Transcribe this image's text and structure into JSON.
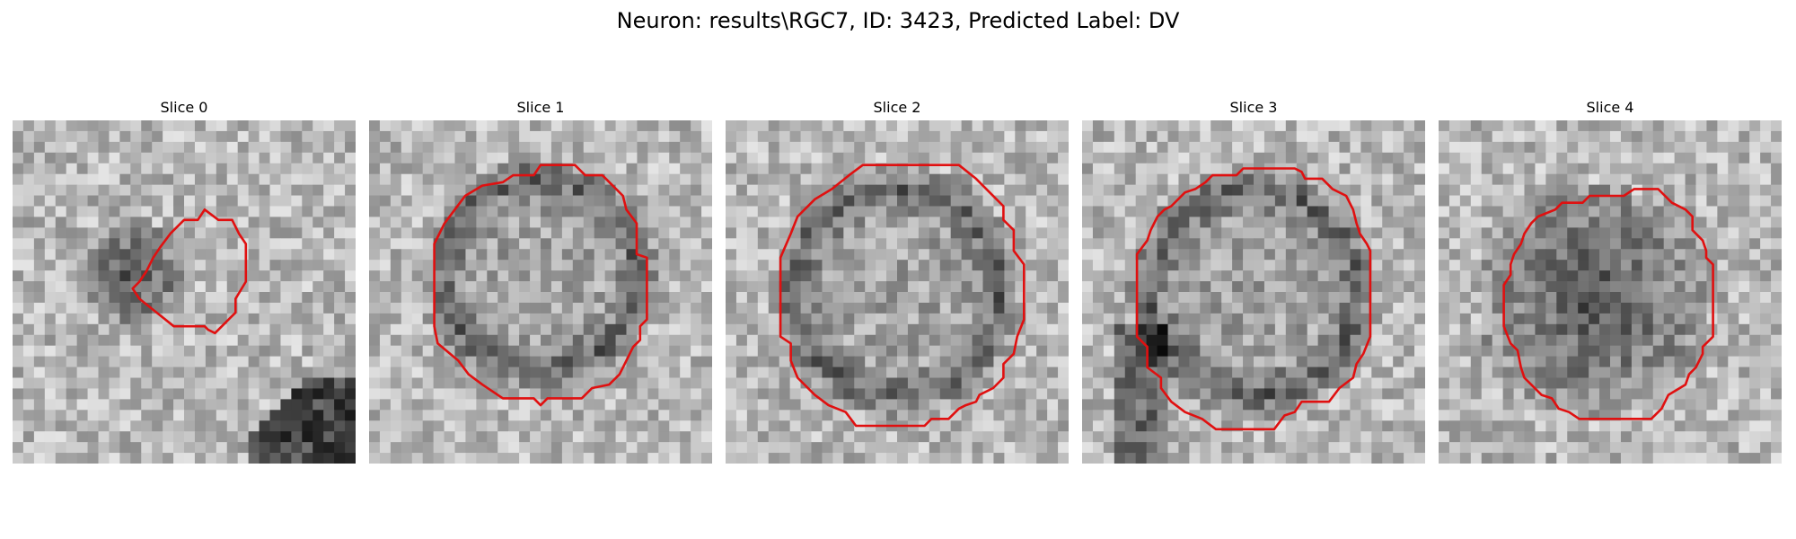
{
  "figure": {
    "title": "Neuron: results\\RGC7, ID: 3423, Predicted Label: DV"
  },
  "panels": [
    {
      "title": "Slice 0",
      "dark_center": [
        0.35,
        0.45
      ],
      "dark_radius": 0.16,
      "ring": false,
      "contour": [
        [
          0.56,
          0.26
        ],
        [
          0.6,
          0.29
        ],
        [
          0.64,
          0.29
        ],
        [
          0.66,
          0.33
        ],
        [
          0.68,
          0.36
        ],
        [
          0.68,
          0.47
        ],
        [
          0.65,
          0.52
        ],
        [
          0.65,
          0.56
        ],
        [
          0.62,
          0.59
        ],
        [
          0.59,
          0.62
        ],
        [
          0.57,
          0.61
        ],
        [
          0.56,
          0.6
        ],
        [
          0.47,
          0.6
        ],
        [
          0.42,
          0.56
        ],
        [
          0.37,
          0.52
        ],
        [
          0.35,
          0.49
        ],
        [
          0.37,
          0.47
        ],
        [
          0.39,
          0.44
        ],
        [
          0.41,
          0.4
        ],
        [
          0.43,
          0.37
        ],
        [
          0.46,
          0.33
        ],
        [
          0.5,
          0.29
        ],
        [
          0.54,
          0.29
        ]
      ],
      "contour_color": "#e01010"
    },
    {
      "title": "Slice 1",
      "dark_center": [
        0.5,
        0.45
      ],
      "dark_radius": 0.28,
      "ring": true,
      "contour": [
        [
          0.39,
          0.18
        ],
        [
          0.42,
          0.16
        ],
        [
          0.48,
          0.16
        ],
        [
          0.5,
          0.13
        ],
        [
          0.6,
          0.13
        ],
        [
          0.63,
          0.16
        ],
        [
          0.68,
          0.16
        ],
        [
          0.74,
          0.22
        ],
        [
          0.75,
          0.26
        ],
        [
          0.78,
          0.3
        ],
        [
          0.78,
          0.39
        ],
        [
          0.81,
          0.4
        ],
        [
          0.81,
          0.58
        ],
        [
          0.79,
          0.6
        ],
        [
          0.79,
          0.64
        ],
        [
          0.77,
          0.66
        ],
        [
          0.75,
          0.7
        ],
        [
          0.73,
          0.74
        ],
        [
          0.7,
          0.77
        ],
        [
          0.65,
          0.78
        ],
        [
          0.62,
          0.81
        ],
        [
          0.52,
          0.81
        ],
        [
          0.5,
          0.83
        ],
        [
          0.48,
          0.81
        ],
        [
          0.39,
          0.81
        ],
        [
          0.33,
          0.77
        ],
        [
          0.29,
          0.74
        ],
        [
          0.26,
          0.7
        ],
        [
          0.2,
          0.65
        ],
        [
          0.19,
          0.6
        ],
        [
          0.19,
          0.36
        ],
        [
          0.22,
          0.3
        ],
        [
          0.25,
          0.26
        ],
        [
          0.28,
          0.22
        ],
        [
          0.33,
          0.19
        ]
      ],
      "contour_color": "#e01010"
    },
    {
      "title": "Slice 2",
      "dark_center": [
        0.5,
        0.5
      ],
      "dark_radius": 0.3,
      "ring": true,
      "contour": [
        [
          0.31,
          0.2
        ],
        [
          0.36,
          0.16
        ],
        [
          0.4,
          0.13
        ],
        [
          0.68,
          0.13
        ],
        [
          0.73,
          0.17
        ],
        [
          0.79,
          0.23
        ],
        [
          0.81,
          0.25
        ],
        [
          0.81,
          0.29
        ],
        [
          0.84,
          0.32
        ],
        [
          0.84,
          0.38
        ],
        [
          0.87,
          0.42
        ],
        [
          0.87,
          0.58
        ],
        [
          0.85,
          0.63
        ],
        [
          0.84,
          0.68
        ],
        [
          0.81,
          0.71
        ],
        [
          0.81,
          0.75
        ],
        [
          0.78,
          0.78
        ],
        [
          0.74,
          0.8
        ],
        [
          0.73,
          0.82
        ],
        [
          0.7,
          0.83
        ],
        [
          0.68,
          0.84
        ],
        [
          0.65,
          0.87
        ],
        [
          0.6,
          0.87
        ],
        [
          0.58,
          0.89
        ],
        [
          0.38,
          0.89
        ],
        [
          0.35,
          0.85
        ],
        [
          0.3,
          0.83
        ],
        [
          0.26,
          0.8
        ],
        [
          0.21,
          0.75
        ],
        [
          0.19,
          0.7
        ],
        [
          0.19,
          0.65
        ],
        [
          0.16,
          0.63
        ],
        [
          0.16,
          0.4
        ],
        [
          0.19,
          0.33
        ],
        [
          0.21,
          0.28
        ],
        [
          0.26,
          0.23
        ]
      ],
      "contour_color": "#e01010"
    },
    {
      "title": "Slice 3",
      "dark_center": [
        0.5,
        0.5
      ],
      "dark_radius": 0.3,
      "ring": true,
      "contour": [
        [
          0.26,
          0.25
        ],
        [
          0.3,
          0.21
        ],
        [
          0.33,
          0.2
        ],
        [
          0.36,
          0.18
        ],
        [
          0.38,
          0.16
        ],
        [
          0.45,
          0.16
        ],
        [
          0.47,
          0.14
        ],
        [
          0.62,
          0.14
        ],
        [
          0.64,
          0.15
        ],
        [
          0.65,
          0.17
        ],
        [
          0.7,
          0.17
        ],
        [
          0.73,
          0.2
        ],
        [
          0.77,
          0.22
        ],
        [
          0.79,
          0.26
        ],
        [
          0.8,
          0.3
        ],
        [
          0.81,
          0.33
        ],
        [
          0.83,
          0.36
        ],
        [
          0.84,
          0.38
        ],
        [
          0.84,
          0.63
        ],
        [
          0.82,
          0.68
        ],
        [
          0.8,
          0.71
        ],
        [
          0.79,
          0.75
        ],
        [
          0.75,
          0.78
        ],
        [
          0.72,
          0.82
        ],
        [
          0.64,
          0.82
        ],
        [
          0.62,
          0.85
        ],
        [
          0.59,
          0.86
        ],
        [
          0.56,
          0.9
        ],
        [
          0.39,
          0.9
        ],
        [
          0.35,
          0.87
        ],
        [
          0.3,
          0.85
        ],
        [
          0.26,
          0.82
        ],
        [
          0.23,
          0.78
        ],
        [
          0.23,
          0.75
        ],
        [
          0.19,
          0.72
        ],
        [
          0.19,
          0.66
        ],
        [
          0.16,
          0.63
        ],
        [
          0.16,
          0.39
        ],
        [
          0.19,
          0.35
        ],
        [
          0.2,
          0.32
        ],
        [
          0.22,
          0.28
        ],
        [
          0.24,
          0.26
        ]
      ],
      "contour_color": "#e01010"
    },
    {
      "title": "Slice 4",
      "dark_center": [
        0.45,
        0.52
      ],
      "dark_radius": 0.34,
      "ring": false,
      "contour": [
        [
          0.29,
          0.28
        ],
        [
          0.34,
          0.26
        ],
        [
          0.36,
          0.24
        ],
        [
          0.42,
          0.24
        ],
        [
          0.44,
          0.22
        ],
        [
          0.54,
          0.22
        ],
        [
          0.57,
          0.2
        ],
        [
          0.64,
          0.2
        ],
        [
          0.66,
          0.22
        ],
        [
          0.68,
          0.24
        ],
        [
          0.72,
          0.26
        ],
        [
          0.74,
          0.28
        ],
        [
          0.74,
          0.32
        ],
        [
          0.77,
          0.35
        ],
        [
          0.78,
          0.38
        ],
        [
          0.78,
          0.4
        ],
        [
          0.8,
          0.42
        ],
        [
          0.8,
          0.63
        ],
        [
          0.77,
          0.66
        ],
        [
          0.77,
          0.68
        ],
        [
          0.75,
          0.72
        ],
        [
          0.73,
          0.74
        ],
        [
          0.72,
          0.77
        ],
        [
          0.67,
          0.8
        ],
        [
          0.65,
          0.84
        ],
        [
          0.62,
          0.87
        ],
        [
          0.41,
          0.87
        ],
        [
          0.38,
          0.85
        ],
        [
          0.35,
          0.84
        ],
        [
          0.33,
          0.81
        ],
        [
          0.3,
          0.8
        ],
        [
          0.27,
          0.77
        ],
        [
          0.25,
          0.75
        ],
        [
          0.24,
          0.72
        ],
        [
          0.23,
          0.67
        ],
        [
          0.21,
          0.65
        ],
        [
          0.19,
          0.6
        ],
        [
          0.19,
          0.48
        ],
        [
          0.21,
          0.45
        ],
        [
          0.21,
          0.42
        ],
        [
          0.22,
          0.39
        ],
        [
          0.24,
          0.36
        ],
        [
          0.25,
          0.33
        ],
        [
          0.27,
          0.3
        ]
      ],
      "contour_color": "#e01010"
    }
  ]
}
